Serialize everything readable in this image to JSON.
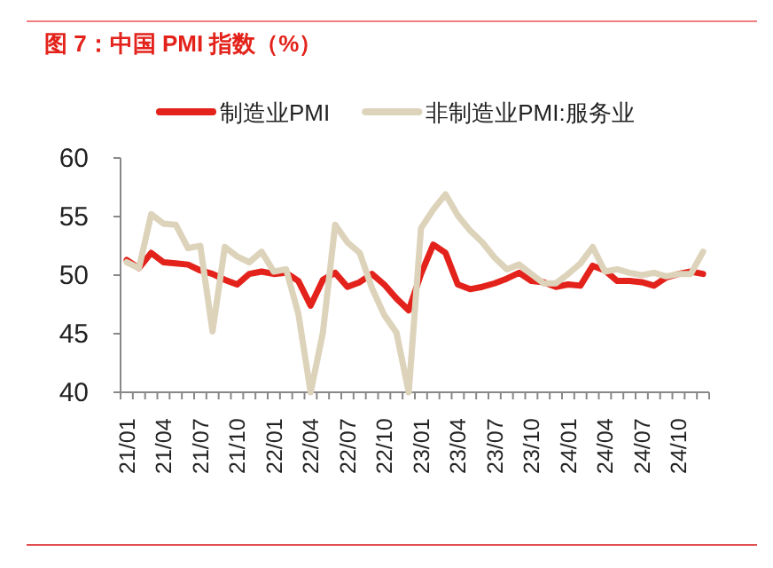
{
  "chart_data": {
    "type": "line",
    "title": "图 7：中国 PMI 指数（%）",
    "categories": [
      "21/01",
      null,
      null,
      "21/04",
      null,
      null,
      "21/07",
      null,
      null,
      "21/10",
      null,
      null,
      "22/01",
      null,
      null,
      "22/04",
      null,
      null,
      "22/07",
      null,
      null,
      "22/10",
      null,
      null,
      "23/01",
      null,
      null,
      "23/04",
      null,
      null,
      "23/07",
      null,
      null,
      "23/10",
      null,
      null,
      "24/01",
      null,
      null,
      "24/04",
      null,
      null,
      "24/07",
      null,
      null,
      "24/10",
      null,
      null
    ],
    "series": [
      {
        "name": "制造业PMI",
        "color": "#e3231b",
        "values": [
          51.3,
          50.6,
          51.9,
          51.1,
          51.0,
          50.9,
          50.4,
          50.1,
          49.6,
          49.2,
          50.1,
          50.3,
          50.1,
          50.2,
          49.5,
          47.4,
          49.6,
          50.2,
          49.0,
          49.4,
          50.1,
          49.2,
          48.0,
          47.0,
          50.1,
          52.6,
          51.9,
          49.2,
          48.8,
          49.0,
          49.3,
          49.7,
          50.2,
          49.5,
          49.4,
          49.0,
          49.2,
          49.1,
          50.8,
          50.4,
          49.5,
          49.5,
          49.4,
          49.1,
          49.8,
          50.1,
          50.3,
          50.1
        ]
      },
      {
        "name": "非制造业PMI:服务业",
        "color": "#ddd3bb",
        "values": [
          51.1,
          50.6,
          55.2,
          54.4,
          54.3,
          52.3,
          52.5,
          45.2,
          52.4,
          51.6,
          51.1,
          52.0,
          50.3,
          50.5,
          46.7,
          40.0,
          45.1,
          54.3,
          52.8,
          51.9,
          48.9,
          46.6,
          45.1,
          40.0,
          54.0,
          55.6,
          56.9,
          55.1,
          53.8,
          52.8,
          51.5,
          50.5,
          50.9,
          50.1,
          49.3,
          49.3,
          50.1,
          51.0,
          52.4,
          50.3,
          50.5,
          50.2,
          50.0,
          50.2,
          49.9,
          50.1,
          50.1,
          52.0
        ]
      }
    ],
    "ylim": [
      40,
      60
    ],
    "yticks": [
      40,
      45,
      50,
      55,
      60
    ],
    "legend": "top"
  }
}
